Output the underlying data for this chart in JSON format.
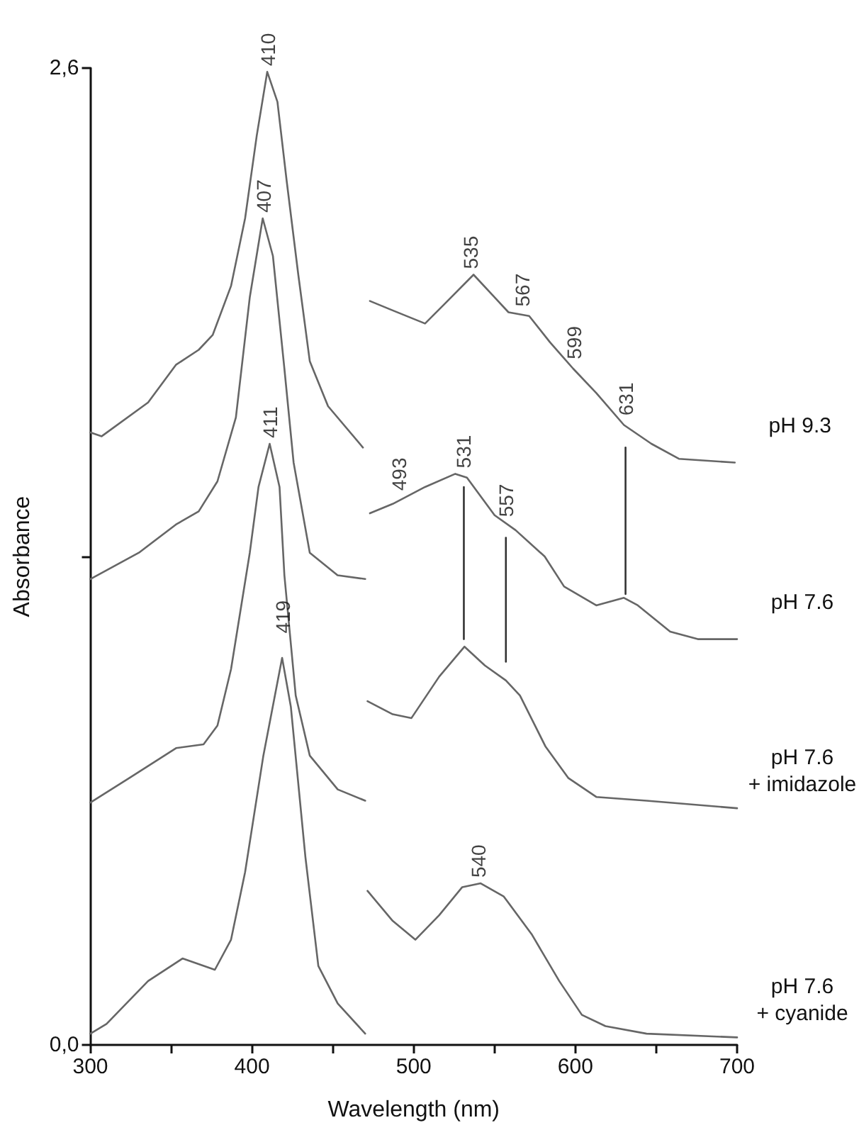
{
  "chart_data": {
    "type": "line",
    "xlabel": "Wavelength (nm)",
    "ylabel": "Absorbance",
    "xlim": [
      300,
      700
    ],
    "xticks": [
      300,
      {
        "value": 350,
        "label": null
      },
      400,
      {
        "value": 450,
        "label": null
      },
      500,
      {
        "value": 550,
        "label": null
      },
      600,
      {
        "value": 650,
        "label": null
      },
      700
    ],
    "ylim": [
      0,
      2.6
    ],
    "yticks": [
      {
        "value": 0,
        "label": "0,0"
      },
      {
        "value": 1.3,
        "label": null
      },
      {
        "value": 2.6,
        "label": "2,6"
      }
    ],
    "grid": false,
    "legend": false,
    "marker": "none",
    "line_style": "solid",
    "series": [
      {
        "name": "pH 9.3",
        "color": "#666666",
        "x": [
          300,
          307,
          335.7,
          352.9,
          367,
          375.7,
          387,
          395.7,
          402.9,
          409.4,
          415.7,
          421.4,
          428.6,
          435.7,
          447,
          468.6,
          470,
          472.9,
          487,
          507,
          518.6,
          537,
          550,
          558.6,
          571.4,
          584.3,
          598.6,
          612.9,
          630,
          647,
          664,
          698.6
        ],
        "values": [
          1.63,
          1.62,
          1.71,
          1.81,
          1.85,
          1.89,
          2.02,
          2.2,
          2.42,
          2.59,
          2.51,
          2.3,
          2.05,
          1.82,
          1.7,
          1.59,
          null,
          1.98,
          1.955,
          1.92,
          1.97,
          2.05,
          1.99,
          1.95,
          1.94,
          1.87,
          1.8,
          1.735,
          1.65,
          1.6,
          1.56,
          1.55
        ]
      },
      {
        "name": "pH 7.6",
        "color": "#666666",
        "x": [
          300,
          330,
          352.9,
          367,
          378.6,
          390,
          398.6,
          406.6,
          412.9,
          420,
          425.7,
          435.7,
          452.9,
          470,
          471.5,
          472.9,
          487,
          507,
          525.7,
          532.9,
          550,
          563,
          581,
          593,
          612.9,
          630,
          638.6,
          658.6,
          675.7,
          700
        ],
        "values": [
          1.24,
          1.31,
          1.385,
          1.42,
          1.5,
          1.67,
          1.99,
          2.2,
          2.1,
          1.8,
          1.55,
          1.31,
          1.25,
          1.24,
          null,
          1.415,
          1.44,
          1.485,
          1.52,
          1.51,
          1.41,
          1.37,
          1.3,
          1.22,
          1.17,
          1.19,
          1.17,
          1.1,
          1.08,
          1.08
        ]
      },
      {
        "name": "pH 7.6\n+ imidazole",
        "color": "#666666",
        "x": [
          300,
          324,
          353,
          370,
          378.6,
          387,
          398.6,
          404,
          410.9,
          417,
          420,
          427,
          435.7,
          453,
          470,
          470.7,
          471.4,
          487,
          498.6,
          515.7,
          531.4,
          544,
          557,
          565.7,
          581.4,
          595.7,
          612.9,
          644,
          700
        ],
        "values": [
          0.645,
          0.71,
          0.79,
          0.8,
          0.85,
          1,
          1.31,
          1.485,
          1.6,
          1.485,
          1.25,
          0.93,
          0.77,
          0.68,
          0.65,
          null,
          0.915,
          0.88,
          0.87,
          0.98,
          1.06,
          1.01,
          0.97,
          0.93,
          0.795,
          0.71,
          0.66,
          0.65,
          0.63
        ]
      },
      {
        "name": "pH 7.6\n+ cyanide",
        "color": "#666666",
        "x": [
          300,
          310,
          335.7,
          357,
          377,
          387,
          395.7,
          407,
          418.6,
          424,
          433,
          441,
          453,
          470,
          470.7,
          471.4,
          487,
          501,
          515.7,
          530,
          541.4,
          555.7,
          572.9,
          590,
          604,
          618.6,
          644,
          700
        ],
        "values": [
          0.03,
          0.056,
          0.17,
          0.23,
          0.2,
          0.28,
          0.46,
          0.77,
          1.03,
          0.9,
          0.5,
          0.21,
          0.11,
          0.03,
          null,
          0.41,
          0.33,
          0.28,
          0.345,
          0.42,
          0.43,
          0.395,
          0.295,
          0.17,
          0.08,
          0.05,
          0.03,
          0.02
        ]
      },
      {
        "color": "#333333",
        "x": [
          531,
          531
        ],
        "values": [
          1.485,
          1.08
        ]
      },
      {
        "color": "#333333",
        "x": [
          557,
          557
        ],
        "values": [
          1.35,
          1.02
        ]
      },
      {
        "color": "#333333",
        "x": [
          631,
          631
        ],
        "values": [
          1.59,
          1.2
        ]
      }
    ],
    "annotations": [
      {
        "text": "410",
        "x": 410,
        "y": 2.59
      },
      {
        "text": "407",
        "x": 407,
        "y": 2.2
      },
      {
        "text": "411",
        "x": 411,
        "y": 1.6
      },
      {
        "text": "419",
        "x": 419,
        "y": 1.08
      },
      {
        "text": "535",
        "x": 535,
        "y": 2.05
      },
      {
        "text": "567",
        "x": 567,
        "y": 1.95
      },
      {
        "text": "599",
        "x": 599,
        "y": 1.81
      },
      {
        "text": "631",
        "x": 631,
        "y": 1.66
      },
      {
        "text": "493",
        "x": 491,
        "y": 1.46
      },
      {
        "text": "531",
        "x": 531,
        "y": 1.52
      },
      {
        "text": "557",
        "x": 557,
        "y": 1.39
      },
      {
        "text": "540",
        "x": 540,
        "y": 0.43
      }
    ]
  }
}
